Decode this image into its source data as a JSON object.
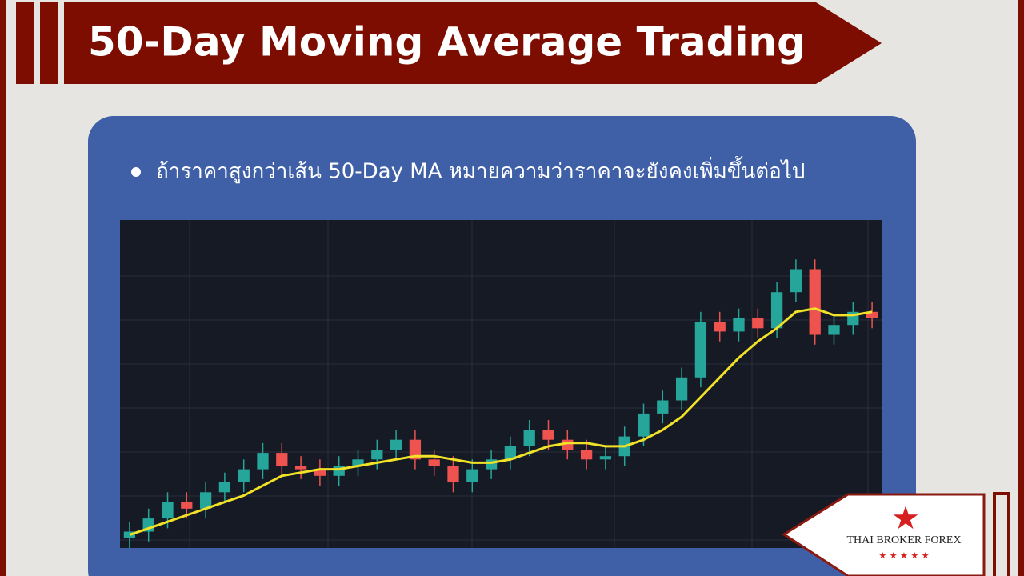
{
  "header": {
    "title": "50-Day Moving Average Trading"
  },
  "bullet": "ถ้าราคาสูงกว่าเส้น 50-Day MA หมายความว่าราคาจะยังคงเพิ่มขึ้นต่อไป",
  "logo": {
    "name": "THAI BROKER FOREX",
    "stars": "★ ★ ★ ★ ★"
  },
  "chart_data": {
    "type": "candlestick",
    "ylim": [
      0,
      100
    ],
    "up_color": "#26a69a",
    "down_color": "#ef5350",
    "open": [
      3,
      5,
      9,
      14,
      12,
      17,
      20,
      24,
      29,
      25,
      24,
      22,
      25,
      27,
      30,
      33,
      27,
      25,
      20,
      24,
      27,
      31,
      36,
      33,
      30,
      27,
      28,
      34,
      41,
      45,
      52,
      69,
      66,
      70,
      67,
      78,
      85,
      65,
      68,
      72
    ],
    "high": [
      8,
      12,
      17,
      17,
      20,
      23,
      27,
      32,
      32,
      28,
      27,
      28,
      30,
      33,
      36,
      36,
      30,
      28,
      27,
      30,
      34,
      39,
      39,
      36,
      33,
      31,
      37,
      44,
      48,
      55,
      72,
      72,
      73,
      73,
      81,
      88,
      88,
      71,
      75,
      75
    ],
    "low": [
      0,
      2,
      6,
      9,
      9,
      14,
      17,
      21,
      22,
      21,
      19,
      19,
      22,
      24,
      27,
      24,
      22,
      17,
      17,
      21,
      24,
      28,
      30,
      27,
      24,
      24,
      25,
      31,
      38,
      42,
      49,
      63,
      63,
      64,
      64,
      75,
      62,
      62,
      65,
      67
    ],
    "close": [
      5,
      9,
      14,
      12,
      17,
      20,
      24,
      29,
      25,
      24,
      22,
      25,
      27,
      30,
      33,
      27,
      25,
      20,
      24,
      27,
      31,
      36,
      33,
      30,
      27,
      28,
      34,
      41,
      45,
      52,
      69,
      66,
      70,
      67,
      78,
      85,
      65,
      68,
      72,
      70
    ],
    "ma": {
      "color": "#f2e227",
      "values": [
        4,
        6,
        8,
        10,
        12,
        14,
        16,
        19,
        22,
        23,
        24,
        24,
        25,
        26,
        27,
        28,
        28,
        27,
        26,
        26,
        27,
        29,
        31,
        32,
        32,
        31,
        31,
        33,
        36,
        40,
        46,
        52,
        58,
        63,
        67,
        72,
        73,
        71,
        71,
        72
      ]
    }
  }
}
